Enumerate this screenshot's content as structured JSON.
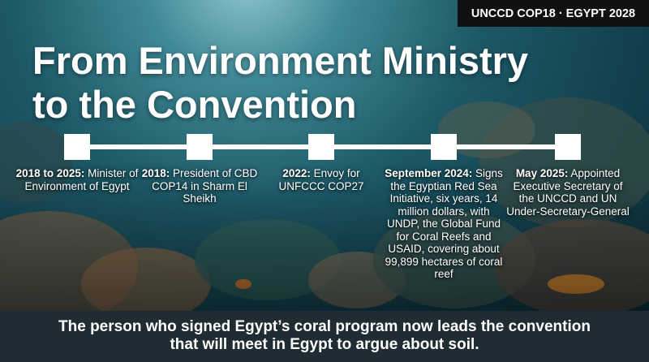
{
  "badge": "UNCCD COP18 · EGYPT 2028",
  "title": {
    "line1": "From Environment Ministry",
    "line2": "to the Convention"
  },
  "timeline": [
    {
      "date": "2018 to 2025:",
      "text": "Minister of Environment of Egypt"
    },
    {
      "date": "2018:",
      "text": "President of CBD COP14 in Sharm El Sheikh"
    },
    {
      "date": "2022:",
      "text": "Envoy for UNFCCC COP27"
    },
    {
      "date": "September 2024:",
      "text": "Signs the Egyptian Red Sea Initiative, six years, 14 million dollars, with UNDP, the Global Fund for Coral Reefs and USAID, covering about 99,899 hectares of coral reef"
    },
    {
      "date": "May 2025:",
      "text": "Appointed Executive Secretary of the UNCCD and UN Under-Secretary-General"
    }
  ],
  "caption": {
    "line1": "The person who signed Egypt’s coral program now leads the convention",
    "line2": "that will meet in Egypt to argue about soil."
  }
}
